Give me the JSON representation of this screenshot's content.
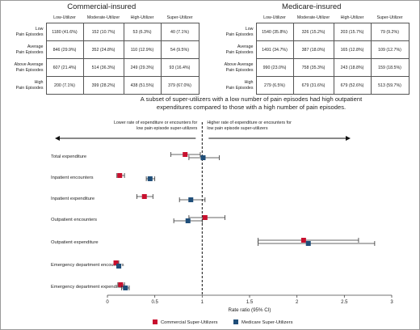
{
  "tables": [
    {
      "title": "Commercial-insured",
      "columns": [
        "Low-Utilizer",
        "Moderate-Utilizer",
        "High-Utilizer",
        "Super-Utilizer"
      ],
      "rows": [
        {
          "label": "Low\nPain Episodes",
          "cells": [
            "1180 (41.6%)",
            "152 (10.7%)",
            "53 (6.3%)",
            "40 (7.1%)"
          ]
        },
        {
          "label": "Average\nPain Episodes",
          "cells": [
            "846 (29.9%)",
            "352 (24.8%)",
            "110 (12.9%)",
            "54 (9.5%)"
          ]
        },
        {
          "label": "Above Average\nPain Episodes",
          "cells": [
            "607 (21.4%)",
            "514 (36.3%)",
            "249 (29.3%)",
            "93 (16.4%)"
          ]
        },
        {
          "label": "High\nPain Episodes",
          "cells": [
            "200 (7.1%)",
            "399 (28.2%)",
            "438 (51.5%)",
            "379 (67.0%)"
          ]
        }
      ]
    },
    {
      "title": "Medicare-insured",
      "columns": [
        "Low-Utilizer",
        "Moderate-Utilizer",
        "High-Utilizer",
        "Super-Utilizer"
      ],
      "rows": [
        {
          "label": "Low\nPain Episodes",
          "cells": [
            "1540 (35.8%)",
            "326 (15.2%)",
            "203 (15.7%)",
            "79 (9.2%)"
          ]
        },
        {
          "label": "Average\nPain Episodes",
          "cells": [
            "1491 (34.7%)",
            "387 (18.0%)",
            "165 (12.8%)",
            "109 (12.7%)"
          ]
        },
        {
          "label": "Above Average\nPain Episodes",
          "cells": [
            "990 (23.0%)",
            "758 (35.3%)",
            "243 (18.8%)",
            "159 (18.5%)"
          ]
        },
        {
          "label": "High\nPain Episodes",
          "cells": [
            "279 (6.5%)",
            "679 (31.6%)",
            "679 (52.6%)",
            "513 (59.7%)"
          ]
        }
      ]
    }
  ],
  "chart_data": {
    "type": "scatter",
    "title": "A subset of super-utilizers with a low number of pain episodes had high outpatient expenditures compared to those with a high number of pain episodes.",
    "xlabel": "Rate ratio (95% CI)",
    "xlim": [
      0,
      3
    ],
    "xticks": [
      "0",
      "0.5",
      "1",
      "1.5",
      "2",
      "2.5",
      "3"
    ],
    "reference_line": 1,
    "left_annotation": "Lower rate of expenditure or encounters for low pain episode super-utilizers",
    "right_annotation": "Higher rate of expenditure or encounters for low pain episode super-utilizers",
    "categories": [
      "Total expenditure",
      "Inpatient encounters",
      "Inpatient expenditure",
      "Outpatient encounters",
      "Outpatient expenditure",
      "Emergency department encounters",
      "Emergency department expenditure"
    ],
    "series": [
      {
        "name": "Commercial Super-Utilizers",
        "color": "#c8102e",
        "points": [
          {
            "est": 0.82,
            "lo": 0.67,
            "hi": 0.98
          },
          {
            "est": 0.13,
            "lo": 0.1,
            "hi": 0.18
          },
          {
            "est": 0.39,
            "lo": 0.31,
            "hi": 0.48
          },
          {
            "est": 1.03,
            "lo": 0.86,
            "hi": 1.24
          },
          {
            "est": 2.07,
            "lo": 1.59,
            "hi": 2.65
          },
          {
            "est": 0.09,
            "lo": 0.07,
            "hi": 0.12
          },
          {
            "est": 0.14,
            "lo": 0.11,
            "hi": 0.18
          }
        ]
      },
      {
        "name": "Medicare Super-Utilizers",
        "color": "#1f4e79",
        "points": [
          {
            "est": 1.01,
            "lo": 0.86,
            "hi": 1.18
          },
          {
            "est": 0.45,
            "lo": 0.41,
            "hi": 0.5
          },
          {
            "est": 0.88,
            "lo": 0.76,
            "hi": 1.03
          },
          {
            "est": 0.85,
            "lo": 0.7,
            "hi": 1.0
          },
          {
            "est": 2.12,
            "lo": 1.59,
            "hi": 2.82
          },
          {
            "est": 0.12,
            "lo": 0.1,
            "hi": 0.14
          },
          {
            "est": 0.19,
            "lo": 0.15,
            "hi": 0.23
          }
        ]
      }
    ]
  }
}
